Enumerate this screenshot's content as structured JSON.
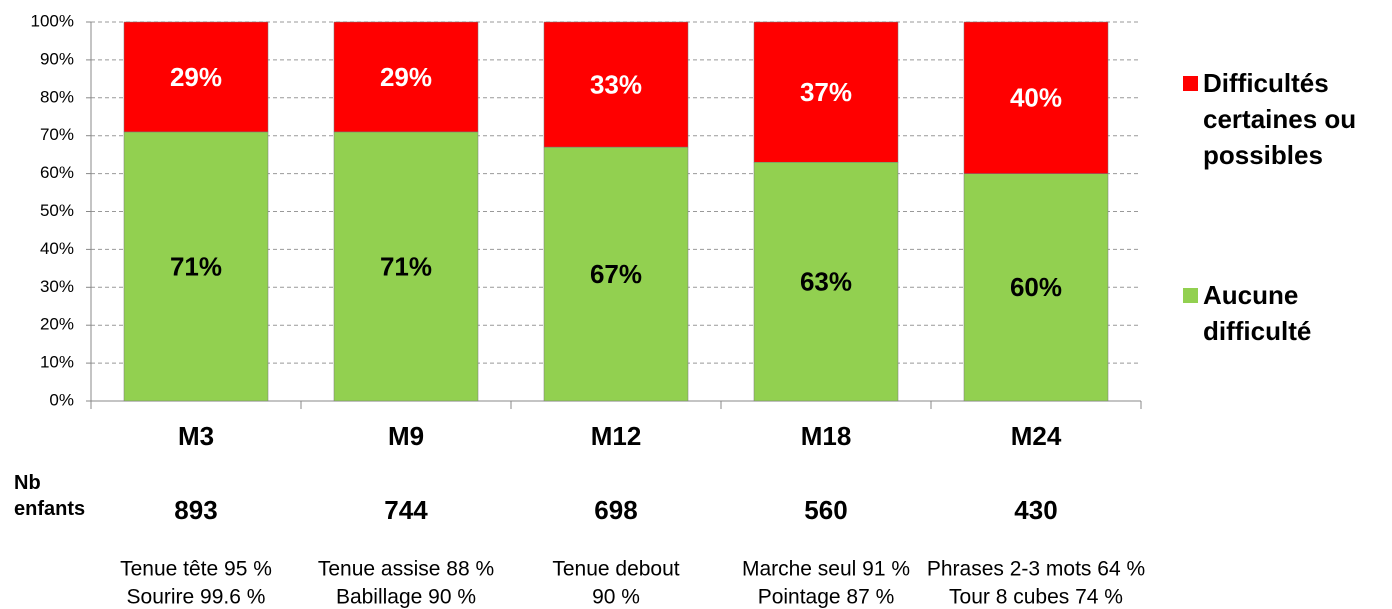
{
  "chart_data": {
    "type": "stacked_bar",
    "categories": [
      "M3",
      "M9",
      "M12",
      "M18",
      "M24"
    ],
    "series": [
      {
        "name": "Aucune difficulté",
        "color": "#92d050",
        "values": [
          71,
          71,
          67,
          63,
          60
        ],
        "value_labels": [
          "71%",
          "71%",
          "67%",
          "63%",
          "60%"
        ],
        "label_color": "#000000"
      },
      {
        "name": "Difficultés certaines ou possibles",
        "color": "#ff0000",
        "values": [
          29,
          29,
          33,
          37,
          40
        ],
        "value_labels": [
          "29%",
          "29%",
          "33%",
          "37%",
          "40%"
        ],
        "label_color": "#ffffff"
      }
    ],
    "ylim": [
      0,
      100
    ],
    "yticks": [
      {
        "value": 0,
        "label": "0%"
      },
      {
        "value": 10,
        "label": "10%"
      },
      {
        "value": 20,
        "label": "20%"
      },
      {
        "value": 30,
        "label": "30%"
      },
      {
        "value": 40,
        "label": "40%"
      },
      {
        "value": 50,
        "label": "50%"
      },
      {
        "value": 60,
        "label": "60%"
      },
      {
        "value": 70,
        "label": "70%"
      },
      {
        "value": 80,
        "label": "80%"
      },
      {
        "value": 90,
        "label": "90%"
      },
      {
        "value": 100,
        "label": "100%"
      }
    ],
    "grid": true,
    "legend": "right",
    "count_label": "Nb enfants",
    "counts": [
      893,
      744,
      698,
      560,
      430
    ],
    "notes": [
      [
        "Tenue tête 95 %",
        "Sourire 99.6 %"
      ],
      [
        "Tenue assise 88 %",
        "Babillage 90  %"
      ],
      [
        "Tenue debout",
        "90 %"
      ],
      [
        "Marche seul 91 %",
        "Pointage 87 %"
      ],
      [
        "Phrases 2-3 mots 64 %",
        "Tour 8 cubes 74 %"
      ]
    ]
  }
}
